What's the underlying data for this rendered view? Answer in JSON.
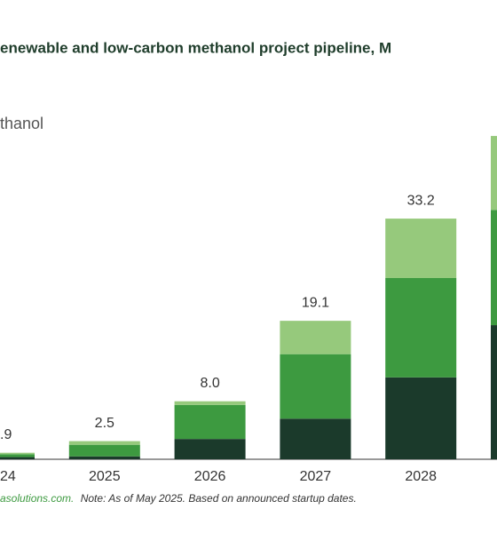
{
  "chart_data": {
    "type": "stacked-bar",
    "title": "enewable and low-carbon methanol project pipeline, M",
    "y_label": "thanol",
    "categories": [
      "24",
      "2025",
      "2026",
      "2027",
      "2028",
      null
    ],
    "series": [
      {
        "color": "#1b3a2b",
        "values": [
          0.3,
          0.4,
          2.8,
          5.6,
          11.3,
          18.5
        ]
      },
      {
        "color": "#3d9a40",
        "values": [
          0.4,
          1.6,
          4.7,
          8.9,
          13.7,
          15.9
        ]
      },
      {
        "color": "#96c97c",
        "values": [
          0.2,
          0.5,
          0.5,
          4.6,
          8.2,
          10.2
        ]
      }
    ],
    "totals": [
      0.9,
      2.5,
      8.0,
      19.1,
      33.2,
      null
    ],
    "total_labels": [
      ".9",
      "2.5",
      "8.0",
      "19.1",
      "33.2",
      null
    ],
    "ylim": [
      0,
      50
    ],
    "source": "asolutions.com.",
    "note": "Note: As of May 2025. Based on announced startup dates."
  }
}
